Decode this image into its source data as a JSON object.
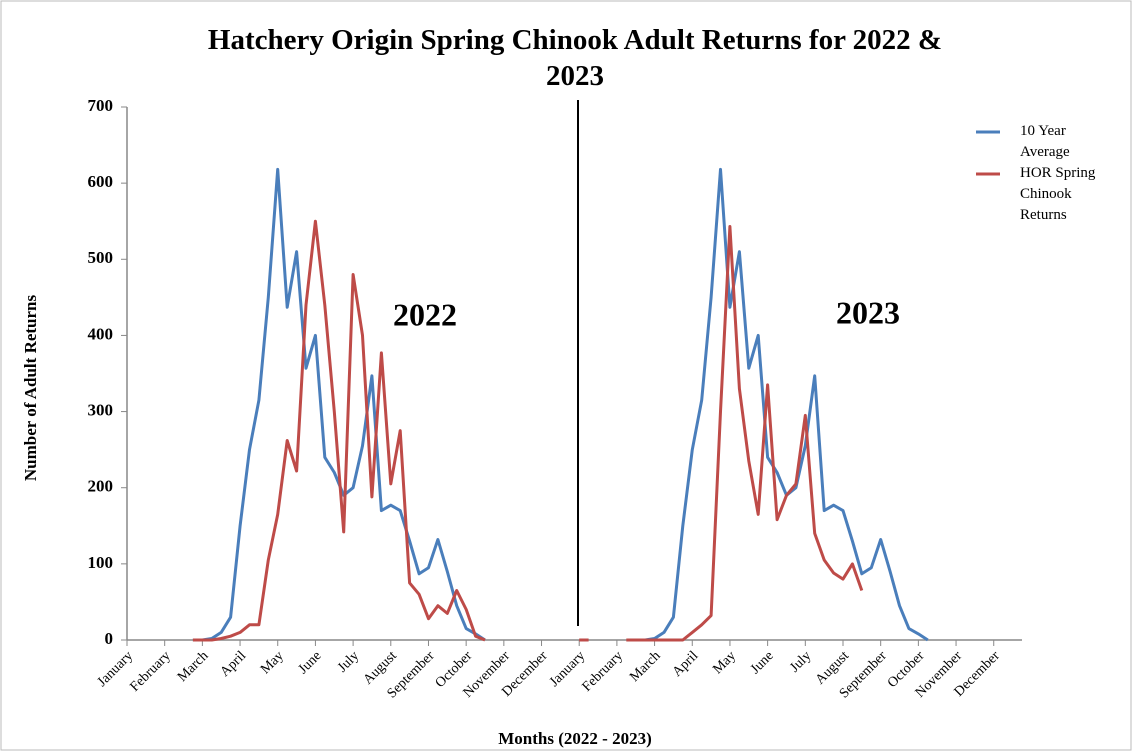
{
  "chart_data": {
    "type": "line",
    "title": "Hatchery Origin Spring Chinook Adult Returns for 2022 & 2023",
    "x_label": "Months (2022 - 2023)",
    "y_label": "Number of Adult Returns",
    "annotations": [
      "2022",
      "2023"
    ],
    "categories": [
      "January",
      null,
      null,
      null,
      "February",
      null,
      null,
      null,
      "March",
      null,
      null,
      null,
      "April",
      null,
      null,
      null,
      "May",
      null,
      null,
      null,
      "June",
      null,
      null,
      null,
      "July",
      null,
      null,
      null,
      "August",
      null,
      null,
      null,
      "September",
      null,
      null,
      null,
      "October",
      null,
      null,
      null,
      "November",
      null,
      null,
      null,
      "December",
      null,
      null,
      null,
      "January",
      null,
      null,
      null,
      "February",
      null,
      null,
      null,
      "March",
      null,
      null,
      null,
      "April",
      null,
      null,
      null,
      "May",
      null,
      null,
      null,
      "June",
      null,
      null,
      null,
      "July",
      null,
      null,
      null,
      "August",
      null,
      null,
      null,
      "September",
      null,
      null,
      null,
      "October",
      null,
      null,
      null,
      "November",
      null,
      null,
      null,
      "December",
      null,
      null,
      null
    ],
    "series": [
      {
        "name": "10 Year Average",
        "color": "#4a7ebb",
        "values": [
          null,
          null,
          null,
          null,
          null,
          null,
          null,
          0,
          0,
          2,
          10,
          30,
          150,
          250,
          315,
          450,
          618,
          437,
          510,
          357,
          400,
          240,
          220,
          190,
          200,
          255,
          347,
          170,
          177,
          170,
          130,
          87,
          95,
          132,
          90,
          45,
          15,
          8,
          0,
          null,
          null,
          null,
          null,
          null,
          null,
          null,
          null,
          null,
          null,
          null,
          null,
          null,
          null,
          null,
          0,
          0,
          2,
          10,
          30,
          150,
          250,
          315,
          450,
          618,
          437,
          510,
          357,
          400,
          240,
          220,
          190,
          200,
          255,
          347,
          170,
          177,
          170,
          130,
          87,
          95,
          132,
          90,
          45,
          15,
          8,
          0,
          null,
          null,
          null,
          null,
          null,
          null,
          null,
          null,
          null,
          null
        ]
      },
      {
        "name": "HOR Spring Chinook Returns",
        "color": "#be4b48",
        "values": [
          null,
          null,
          null,
          null,
          null,
          null,
          null,
          0,
          0,
          0,
          2,
          5,
          10,
          20,
          20,
          105,
          165,
          262,
          222,
          440,
          550,
          440,
          300,
          142,
          480,
          400,
          188,
          377,
          205,
          275,
          75,
          60,
          28,
          45,
          35,
          65,
          40,
          5,
          0,
          null,
          null,
          null,
          null,
          null,
          null,
          null,
          null,
          null,
          0,
          0,
          null,
          null,
          null,
          0,
          0,
          0,
          0,
          0,
          0,
          0,
          10,
          20,
          32,
          300,
          543,
          330,
          235,
          165,
          335,
          158,
          190,
          205,
          295,
          140,
          105,
          88,
          80,
          100,
          65,
          null,
          null,
          null,
          null,
          null,
          null,
          null,
          null,
          null,
          null,
          null,
          null,
          null,
          null,
          null,
          null,
          null
        ]
      }
    ],
    "ylim": [
      0,
      700
    ],
    "yticks": [
      0,
      100,
      200,
      300,
      400,
      500,
      600,
      700
    ],
    "grid": false,
    "legend": "right"
  }
}
